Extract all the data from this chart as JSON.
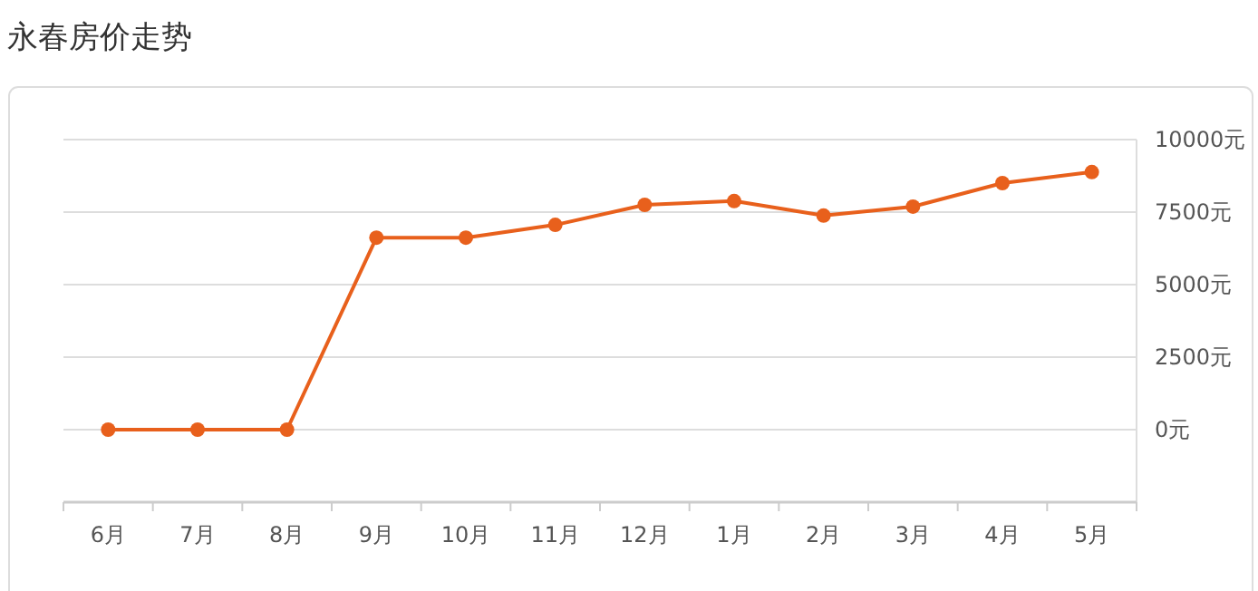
{
  "chart_data": {
    "type": "line",
    "title": "永春房价走势",
    "categories": [
      "6月",
      "7月",
      "8月",
      "9月",
      "10月",
      "11月",
      "12月",
      "1月",
      "2月",
      "3月",
      "4月",
      "5月"
    ],
    "series": [
      {
        "color": "#e8601c",
        "values": [
          0,
          0,
          0,
          6620,
          6620,
          7060,
          7750,
          7880,
          7380,
          7690,
          8500,
          8880
        ]
      }
    ],
    "ylim": [
      -2500,
      10000
    ],
    "yticks": [
      {
        "value": 0,
        "label": "0元"
      },
      {
        "value": 2500,
        "label": "2500元"
      },
      {
        "value": 5000,
        "label": "5000元"
      },
      {
        "value": 7500,
        "label": "7500元"
      },
      {
        "value": 10000,
        "label": "10000元"
      }
    ],
    "grid": "y",
    "marker": "circle"
  }
}
